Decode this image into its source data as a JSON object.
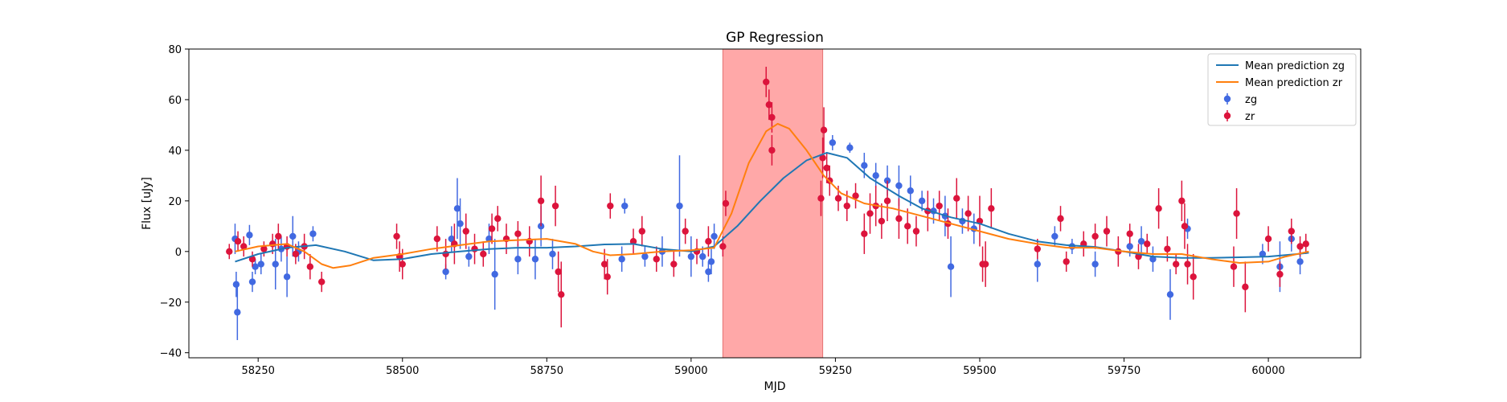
{
  "chart_data": {
    "type": "scatter",
    "title": "GP Regression",
    "xlabel": "MJD",
    "ylabel": "Flux [uJy]",
    "xlim": [
      58130,
      60160
    ],
    "ylim": [
      -42,
      80
    ],
    "xticks": [
      58250,
      58500,
      58750,
      59000,
      59250,
      59500,
      59750,
      60000
    ],
    "yticks": [
      -40,
      -20,
      0,
      20,
      40,
      60,
      80
    ],
    "grid": false,
    "legend_position": "top-right",
    "shaded_region": {
      "x_start": 59055,
      "x_end": 59228,
      "color": "#ffa8a8"
    },
    "colors": {
      "zg_point": "#4169e1",
      "zr_point": "#dc143c",
      "zg_line": "#1f77b4",
      "zr_line": "#ff7f0e"
    },
    "series": [
      {
        "name": "Mean prediction zg",
        "kind": "line",
        "points": [
          [
            58210,
            -4
          ],
          [
            58250,
            -1
          ],
          [
            58300,
            1.5
          ],
          [
            58350,
            2.5
          ],
          [
            58400,
            0
          ],
          [
            58450,
            -3.5
          ],
          [
            58500,
            -3
          ],
          [
            58550,
            -1
          ],
          [
            58600,
            0
          ],
          [
            58650,
            1
          ],
          [
            58700,
            1.5
          ],
          [
            58750,
            1.5
          ],
          [
            58800,
            2
          ],
          [
            58850,
            2.8
          ],
          [
            58900,
            3
          ],
          [
            58950,
            1
          ],
          [
            59000,
            0
          ],
          [
            59040,
            2
          ],
          [
            59080,
            10
          ],
          [
            59120,
            20
          ],
          [
            59160,
            29
          ],
          [
            59200,
            36
          ],
          [
            59235,
            39
          ],
          [
            59270,
            37
          ],
          [
            59310,
            29
          ],
          [
            59360,
            22
          ],
          [
            59400,
            17
          ],
          [
            59450,
            13.5
          ],
          [
            59500,
            11
          ],
          [
            59550,
            7
          ],
          [
            59600,
            4
          ],
          [
            59650,
            2.5
          ],
          [
            59700,
            1.8
          ],
          [
            59750,
            0
          ],
          [
            59800,
            -2
          ],
          [
            59850,
            -2.5
          ],
          [
            59900,
            -2.5
          ],
          [
            59950,
            -2.3
          ],
          [
            60000,
            -2
          ],
          [
            60050,
            -1
          ],
          [
            60070,
            -0.5
          ]
        ]
      },
      {
        "name": "Mean prediction zr",
        "kind": "line",
        "points": [
          [
            58210,
            0
          ],
          [
            58250,
            2
          ],
          [
            58300,
            3
          ],
          [
            58330,
            0
          ],
          [
            58360,
            -5
          ],
          [
            58380,
            -6.5
          ],
          [
            58410,
            -5.5
          ],
          [
            58450,
            -2.5
          ],
          [
            58500,
            -1
          ],
          [
            58550,
            1
          ],
          [
            58600,
            2.5
          ],
          [
            58650,
            4
          ],
          [
            58700,
            4.5
          ],
          [
            58750,
            5
          ],
          [
            58800,
            3
          ],
          [
            58830,
            0
          ],
          [
            58860,
            -1.5
          ],
          [
            58900,
            -1
          ],
          [
            58950,
            0
          ],
          [
            59000,
            0.5
          ],
          [
            59040,
            1.5
          ],
          [
            59070,
            15
          ],
          [
            59100,
            35
          ],
          [
            59130,
            47.5
          ],
          [
            59150,
            50.5
          ],
          [
            59170,
            48.5
          ],
          [
            59200,
            40
          ],
          [
            59230,
            30
          ],
          [
            59260,
            23
          ],
          [
            59300,
            19
          ],
          [
            59350,
            17
          ],
          [
            59400,
            14
          ],
          [
            59450,
            11
          ],
          [
            59500,
            8
          ],
          [
            59550,
            5
          ],
          [
            59600,
            3
          ],
          [
            59650,
            1.5
          ],
          [
            59700,
            1.5
          ],
          [
            59750,
            0
          ],
          [
            59800,
            -1
          ],
          [
            59850,
            -1
          ],
          [
            59900,
            -3
          ],
          [
            59950,
            -4.5
          ],
          [
            60000,
            -4
          ],
          [
            60030,
            -2
          ],
          [
            60070,
            0
          ]
        ]
      },
      {
        "name": "zg",
        "kind": "errorbar",
        "points": [
          [
            58210,
            5,
            6
          ],
          [
            58212,
            -13,
            5
          ],
          [
            58214,
            -24,
            11
          ],
          [
            58235,
            6.5,
            4
          ],
          [
            58240,
            -12,
            4
          ],
          [
            58245,
            -6,
            3
          ],
          [
            58255,
            -5,
            4
          ],
          [
            58280,
            -5,
            10
          ],
          [
            58290,
            1,
            5
          ],
          [
            58300,
            -10,
            8
          ],
          [
            58310,
            6,
            8
          ],
          [
            58320,
            0,
            4
          ],
          [
            58345,
            7,
            3
          ],
          [
            58575,
            -8,
            3
          ],
          [
            58585,
            5,
            5
          ],
          [
            58595,
            17,
            12
          ],
          [
            58600,
            11,
            10
          ],
          [
            58615,
            -2,
            4
          ],
          [
            58650,
            5,
            6
          ],
          [
            58660,
            -9,
            14
          ],
          [
            58700,
            -3,
            6
          ],
          [
            58730,
            -3,
            8
          ],
          [
            58740,
            10,
            8
          ],
          [
            58760,
            -1,
            6
          ],
          [
            58880,
            -3,
            5
          ],
          [
            58885,
            18,
            3
          ],
          [
            58920,
            -2,
            4
          ],
          [
            58950,
            0,
            6
          ],
          [
            58980,
            18,
            20
          ],
          [
            59000,
            -2,
            8
          ],
          [
            59020,
            -2,
            4
          ],
          [
            59030,
            -8,
            4
          ],
          [
            59035,
            -4,
            5
          ],
          [
            59040,
            6,
            5
          ],
          [
            59245,
            43,
            3
          ],
          [
            59275,
            41,
            2
          ],
          [
            59300,
            34,
            5
          ],
          [
            59320,
            30,
            5
          ],
          [
            59340,
            28,
            6
          ],
          [
            59360,
            26,
            8
          ],
          [
            59380,
            24,
            6
          ],
          [
            59400,
            20,
            4
          ],
          [
            59420,
            16,
            5
          ],
          [
            59440,
            14,
            8
          ],
          [
            59450,
            -6,
            12
          ],
          [
            59470,
            12,
            5
          ],
          [
            59490,
            9,
            6
          ],
          [
            59600,
            -5,
            7
          ],
          [
            59630,
            6,
            4
          ],
          [
            59660,
            2,
            3
          ],
          [
            59700,
            -5,
            5
          ],
          [
            59760,
            2,
            4
          ],
          [
            59780,
            4,
            6
          ],
          [
            59800,
            -3,
            5
          ],
          [
            59830,
            -17,
            10
          ],
          [
            59860,
            9,
            4
          ],
          [
            59990,
            -1,
            4
          ],
          [
            60020,
            -6,
            10
          ],
          [
            60040,
            5,
            5
          ],
          [
            60055,
            -4,
            5
          ]
        ]
      },
      {
        "name": "zr",
        "kind": "errorbar",
        "points": [
          [
            58200,
            0,
            3
          ],
          [
            58215,
            4,
            4
          ],
          [
            58225,
            2,
            4
          ],
          [
            58240,
            -3,
            3
          ],
          [
            58260,
            1,
            3
          ],
          [
            58275,
            3,
            4
          ],
          [
            58285,
            6,
            5
          ],
          [
            58300,
            2,
            4
          ],
          [
            58315,
            -1,
            4
          ],
          [
            58330,
            2,
            5
          ],
          [
            58340,
            -6,
            5
          ],
          [
            58360,
            -12,
            4
          ],
          [
            58490,
            6,
            5
          ],
          [
            58495,
            -2,
            6
          ],
          [
            58500,
            -5,
            6
          ],
          [
            58560,
            5,
            5
          ],
          [
            58575,
            -1,
            6
          ],
          [
            58590,
            3,
            8
          ],
          [
            58610,
            8,
            7
          ],
          [
            58625,
            1,
            6
          ],
          [
            58640,
            -1,
            5
          ],
          [
            58655,
            9,
            6
          ],
          [
            58665,
            13,
            5
          ],
          [
            58680,
            5,
            6
          ],
          [
            58700,
            7,
            5
          ],
          [
            58720,
            4,
            6
          ],
          [
            58740,
            20,
            10
          ],
          [
            58765,
            18,
            8
          ],
          [
            58770,
            -8,
            8
          ],
          [
            58775,
            -17,
            13
          ],
          [
            58850,
            -5,
            6
          ],
          [
            58855,
            -10,
            7
          ],
          [
            58860,
            18,
            5
          ],
          [
            58900,
            4,
            5
          ],
          [
            58915,
            8,
            6
          ],
          [
            58940,
            -3,
            5
          ],
          [
            58970,
            -5,
            5
          ],
          [
            58990,
            8,
            5
          ],
          [
            59010,
            0,
            5
          ],
          [
            59030,
            4,
            6
          ],
          [
            59055,
            2,
            4
          ],
          [
            59060,
            19,
            5
          ],
          [
            59130,
            67,
            6
          ],
          [
            59135,
            58,
            6
          ],
          [
            59140,
            53,
            6
          ],
          [
            59140,
            40,
            6
          ],
          [
            59225,
            21,
            7
          ],
          [
            59228,
            37,
            8
          ],
          [
            59230,
            48,
            9
          ],
          [
            59235,
            33,
            6
          ],
          [
            59240,
            28,
            6
          ],
          [
            59255,
            21,
            5
          ],
          [
            59270,
            18,
            6
          ],
          [
            59285,
            22,
            5
          ],
          [
            59300,
            7,
            8
          ],
          [
            59310,
            15,
            8
          ],
          [
            59320,
            18,
            8
          ],
          [
            59330,
            12,
            7
          ],
          [
            59340,
            20,
            8
          ],
          [
            59360,
            13,
            8
          ],
          [
            59375,
            10,
            7
          ],
          [
            59390,
            8,
            6
          ],
          [
            59410,
            16,
            8
          ],
          [
            59430,
            18,
            6
          ],
          [
            59445,
            11,
            6
          ],
          [
            59460,
            21,
            8
          ],
          [
            59480,
            15,
            7
          ],
          [
            59500,
            12,
            10
          ],
          [
            59505,
            -5,
            7
          ],
          [
            59510,
            -5,
            9
          ],
          [
            59520,
            17,
            8
          ],
          [
            59600,
            1,
            4
          ],
          [
            59640,
            13,
            5
          ],
          [
            59650,
            -4,
            4
          ],
          [
            59680,
            3,
            5
          ],
          [
            59700,
            6,
            5
          ],
          [
            59720,
            8,
            6
          ],
          [
            59740,
            0,
            6
          ],
          [
            59760,
            7,
            4
          ],
          [
            59775,
            -2,
            5
          ],
          [
            59790,
            3,
            4
          ],
          [
            59810,
            17,
            8
          ],
          [
            59825,
            1,
            5
          ],
          [
            59840,
            -5,
            4
          ],
          [
            59850,
            20,
            8
          ],
          [
            59855,
            10,
            9
          ],
          [
            59860,
            -5,
            8
          ],
          [
            59870,
            -10,
            9
          ],
          [
            59940,
            -6,
            8
          ],
          [
            59945,
            15,
            10
          ],
          [
            59960,
            -14,
            10
          ],
          [
            60000,
            5,
            5
          ],
          [
            60020,
            -9,
            5
          ],
          [
            60040,
            8,
            5
          ],
          [
            60055,
            2,
            4
          ],
          [
            60065,
            3,
            4
          ]
        ]
      }
    ]
  }
}
